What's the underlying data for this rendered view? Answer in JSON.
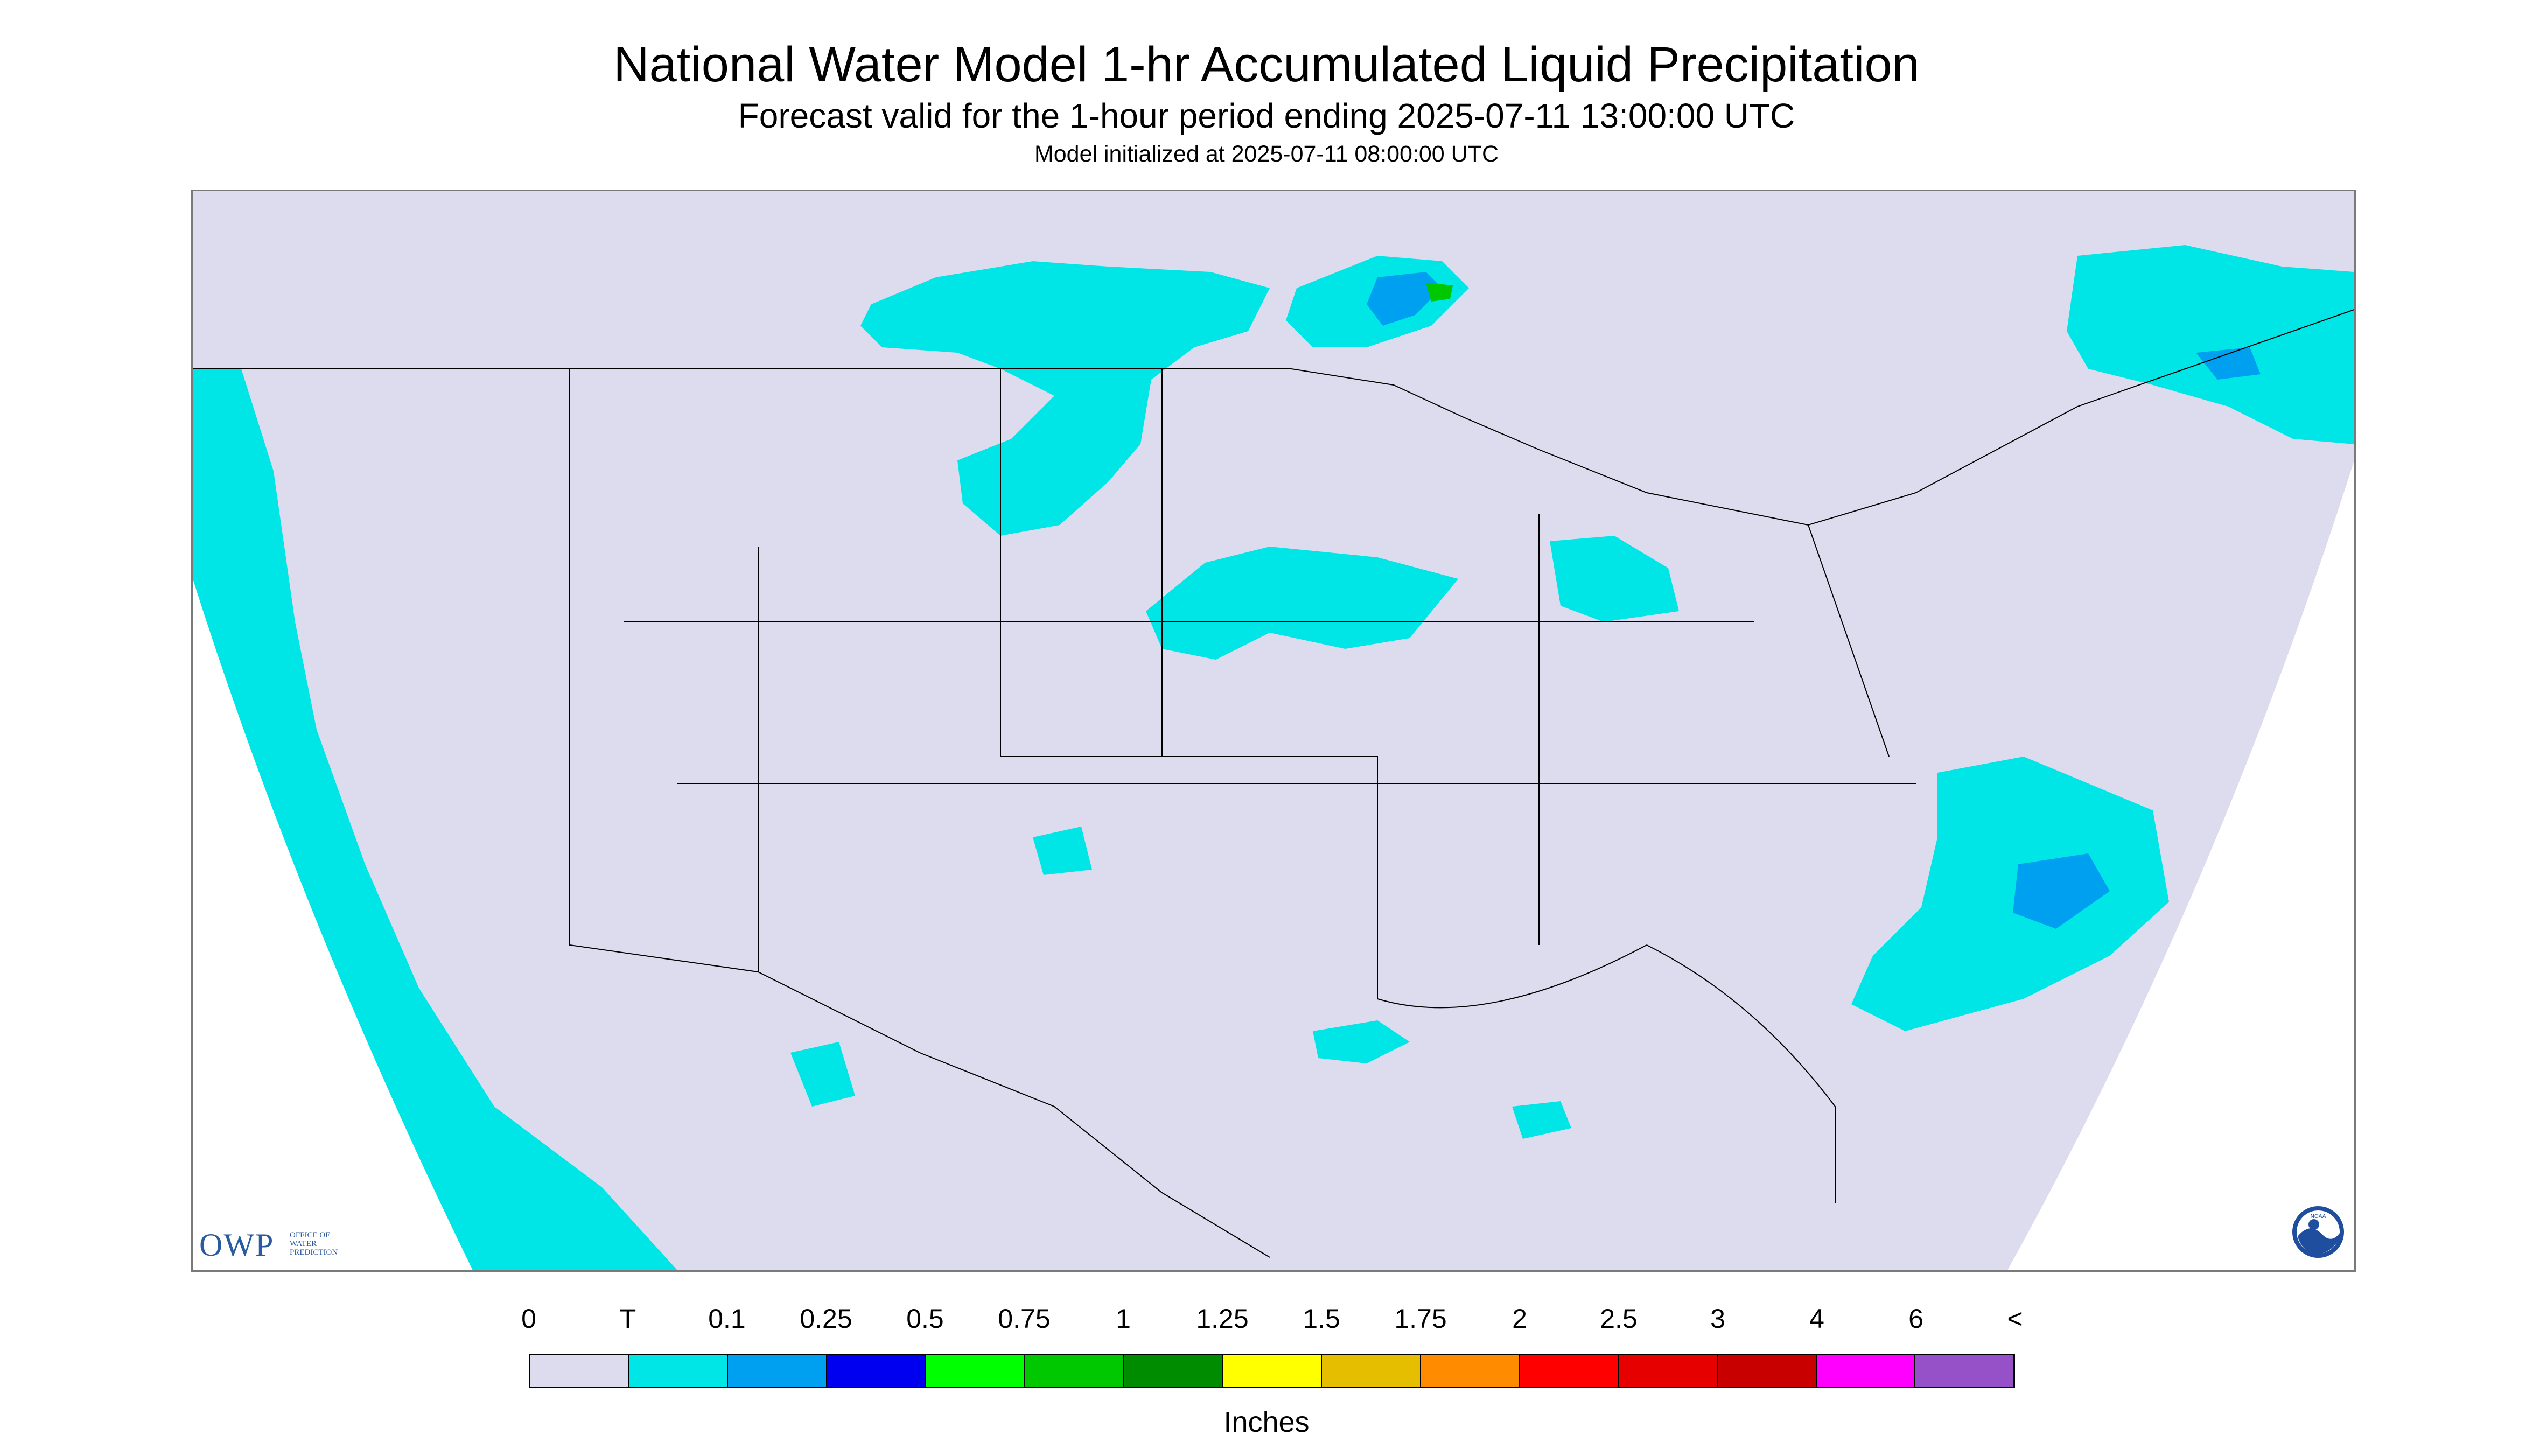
{
  "title": "National Water Model 1-hr Accumulated Liquid Precipitation",
  "subtitle": "Forecast valid for the 1-hour period ending 2025-07-11 13:00:00 UTC",
  "init_line": "Model initialized at 2025-07-11 08:00:00 UTC",
  "logos": {
    "owp_mark": "OWP",
    "owp_lines": [
      "OFFICE OF",
      "WATER",
      "PREDICTION"
    ],
    "noaa": "NOAA"
  },
  "legend": {
    "labels": [
      "0",
      "T",
      "0.1",
      "0.25",
      "0.5",
      "0.75",
      "1",
      "1.25",
      "1.5",
      "1.75",
      "2",
      "2.5",
      "3",
      "4",
      "6",
      "<"
    ],
    "colors": [
      "#dcdcee",
      "#00e6e6",
      "#00a0f0",
      "#0000f0",
      "#00ff00",
      "#00c800",
      "#008c00",
      "#ffff00",
      "#e6be00",
      "#ff8c00",
      "#ff0000",
      "#e60000",
      "#c80000",
      "#ff00ff",
      "#9650c8"
    ],
    "units": "Inches"
  },
  "map_colors": {
    "domain_fill": "#dcdcee",
    "trace": "#00e6e6",
    "light": "#00a0f0",
    "moderate": "#0000f0",
    "heavy": "#00c800",
    "boundary": "#000000",
    "outside": "#ffffff"
  }
}
